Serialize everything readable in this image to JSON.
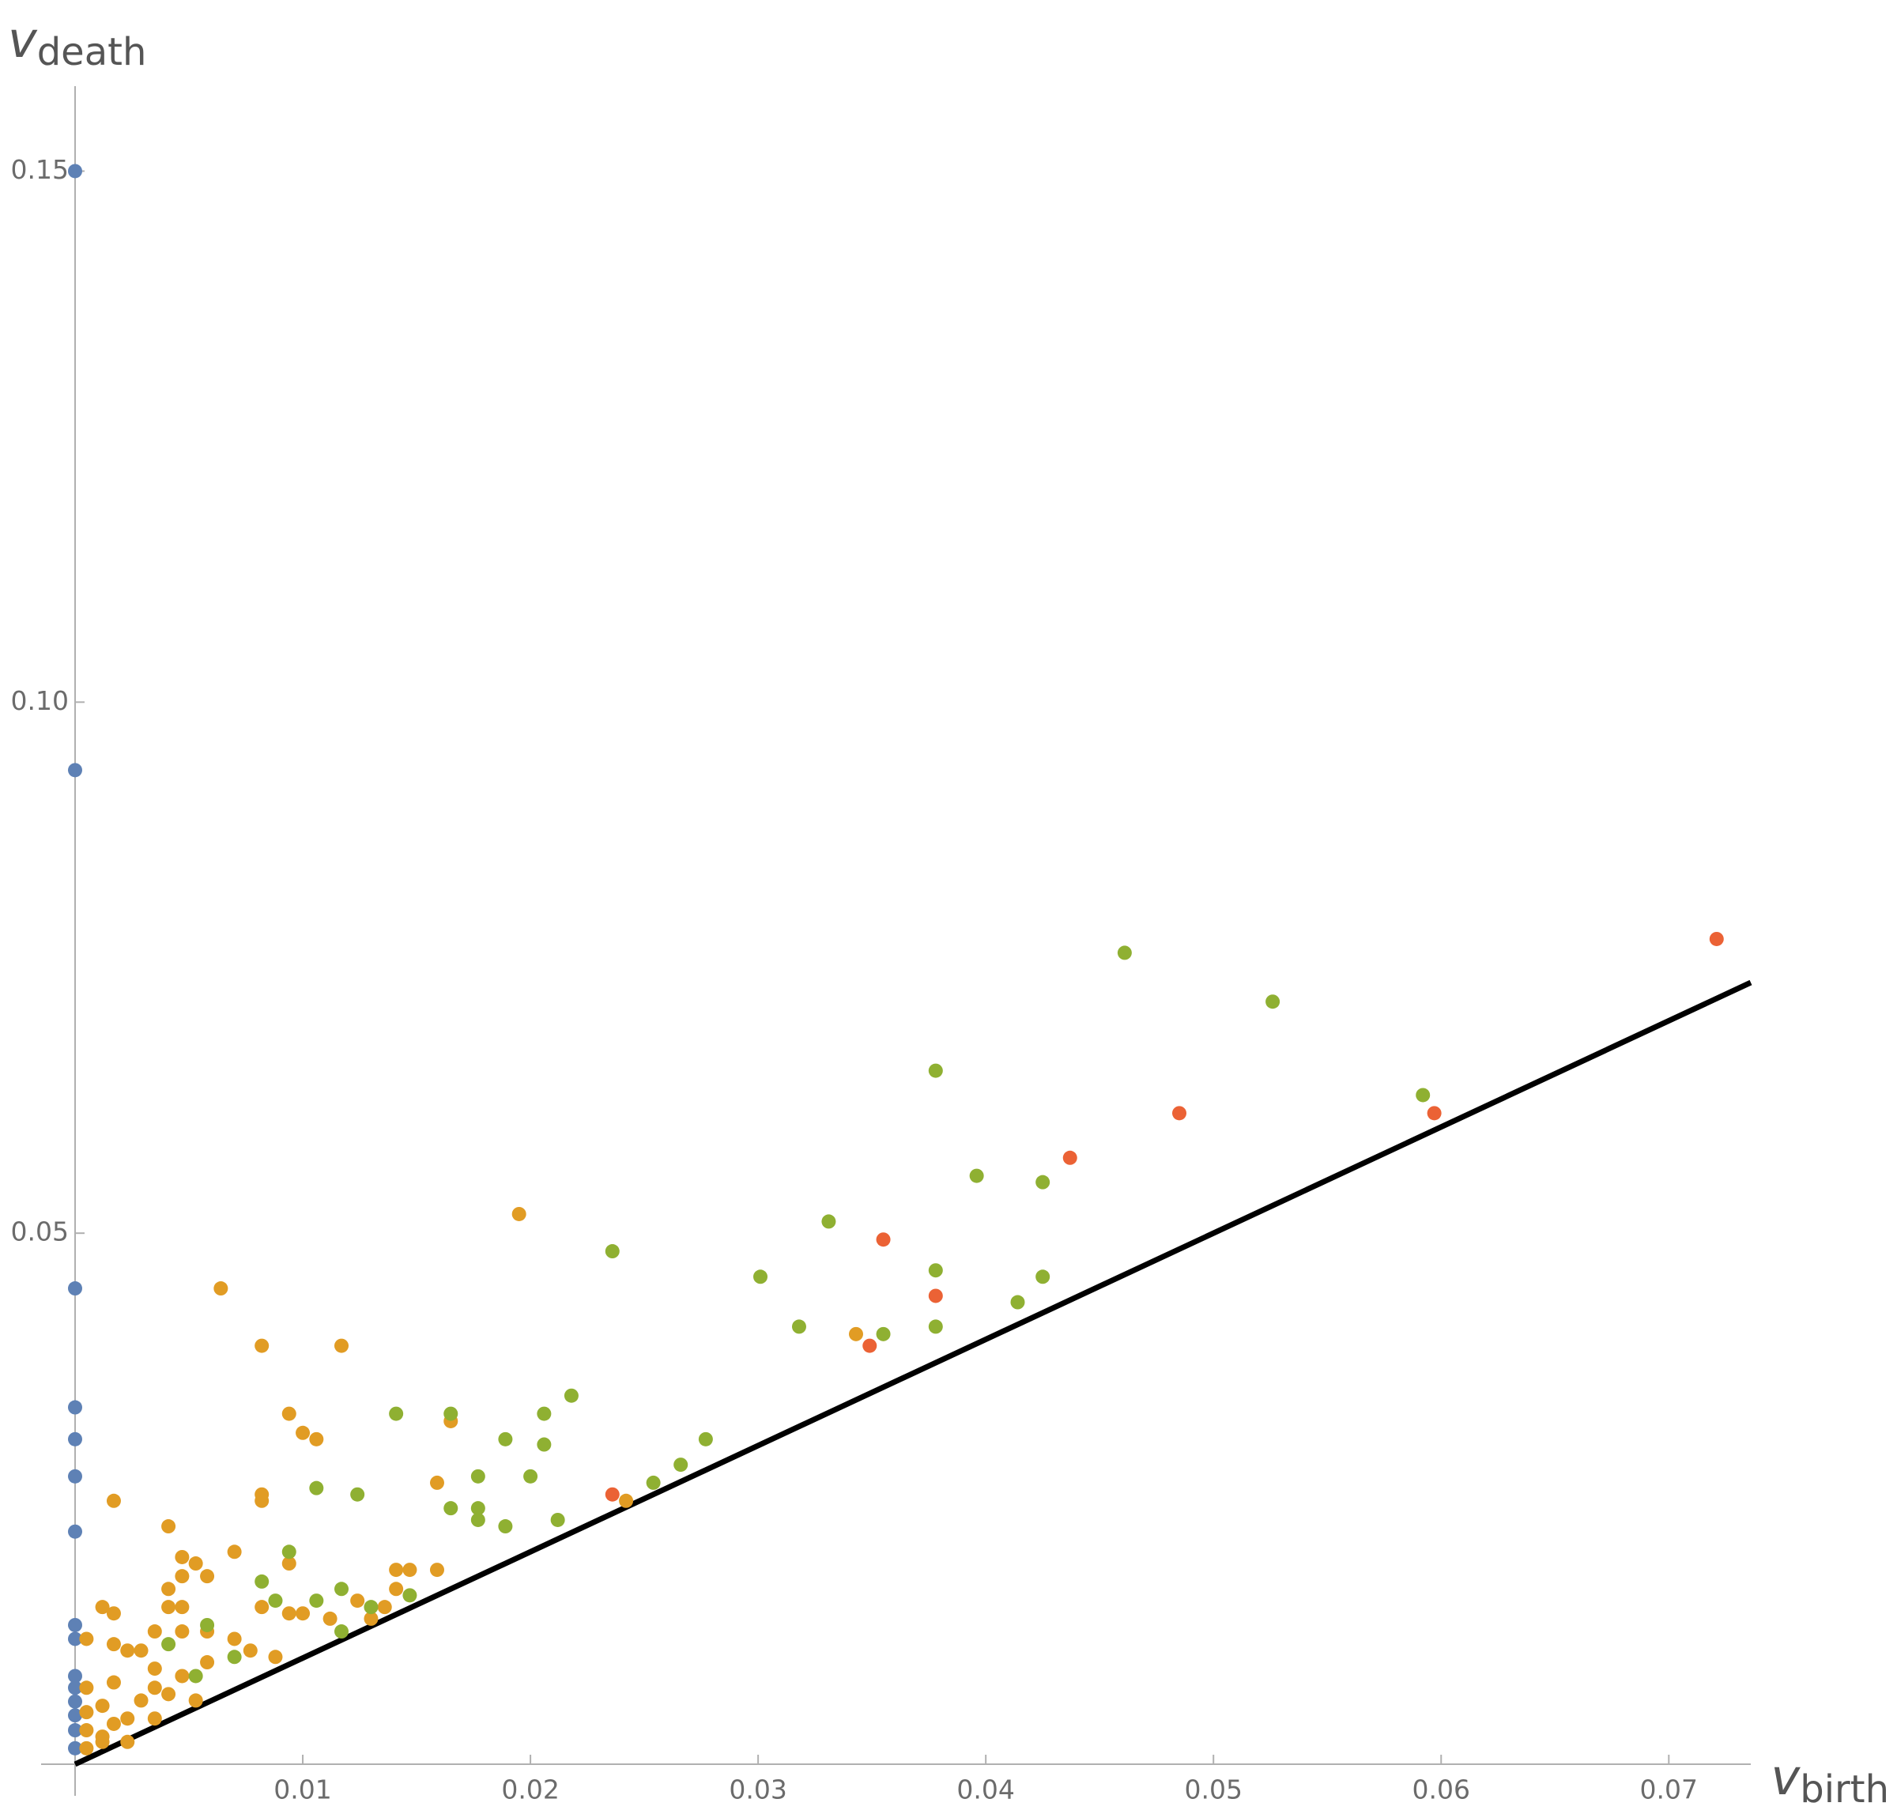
{
  "chart_data": {
    "type": "scatter",
    "x_label": "v",
    "x_label_sub": "birth",
    "y_label": "v",
    "y_label_sub": "death",
    "xlim": [
      0,
      0.0736
    ],
    "ylim": [
      0,
      0.158
    ],
    "xticks": [
      0.01,
      0.02,
      0.03,
      0.04,
      0.05,
      0.06,
      0.07
    ],
    "yticks": [
      0.05,
      {
        "value": 0.1,
        "label": "0.10"
      },
      0.15
    ],
    "diagonal": {
      "color": "#000000",
      "x": [
        0,
        0.0736
      ],
      "y": [
        0,
        0.0736
      ]
    },
    "series": [
      {
        "color": "#5e81b5",
        "x": [
          0,
          0,
          0,
          0,
          0,
          0,
          0,
          0,
          0,
          0,
          0,
          0,
          0,
          0,
          0
        ],
        "y": [
          0.15,
          0.0936,
          0.0448,
          0.0336,
          0.0306,
          0.0271,
          0.0219,
          0.0131,
          0.0118,
          0.0083,
          0.0072,
          0.0059,
          0.0046,
          0.0032,
          0.0015
        ]
      },
      {
        "color": "#e19c24",
        "x": [
          0.0195,
          0.0064,
          0.0082,
          0.0117,
          0.0094,
          0.01,
          0.0106,
          0.0165,
          0.0159,
          0.0017,
          0.0082,
          0.0082,
          0.0041,
          0.007,
          0.0047,
          0.0053,
          0.0094,
          0.0047,
          0.0058,
          0.0141,
          0.0147,
          0.0159,
          0.0041,
          0.0141,
          0.0082,
          0.0041,
          0.0047,
          0.01,
          0.0094,
          0.0124,
          0.0136,
          0.0012,
          0.0017,
          0.0112,
          0.013,
          0.0058,
          0.007,
          0.0035,
          0.0047,
          0.0005,
          0.0017,
          0.0023,
          0.0029,
          0.0077,
          0.0088,
          0.0058,
          0.0035,
          0.0047,
          0.0017,
          0.0005,
          0.0035,
          0.0041,
          0.0053,
          0.0029,
          0.0012,
          0.0005,
          0.0023,
          0.0017,
          0.0035,
          0.0005,
          0.0012,
          0.0023,
          0.0005,
          0.0012,
          0.0242,
          0.0343
        ],
        "y": [
          0.0518,
          0.0448,
          0.0394,
          0.0394,
          0.033,
          0.0312,
          0.0306,
          0.0323,
          0.0265,
          0.0248,
          0.0254,
          0.0248,
          0.0224,
          0.02,
          0.0195,
          0.0189,
          0.0189,
          0.0177,
          0.0177,
          0.0183,
          0.0183,
          0.0183,
          0.0165,
          0.0165,
          0.0148,
          0.0148,
          0.0148,
          0.0142,
          0.0142,
          0.0154,
          0.0148,
          0.0148,
          0.0142,
          0.0137,
          0.0137,
          0.0125,
          0.0118,
          0.0125,
          0.0125,
          0.0118,
          0.0113,
          0.0107,
          0.0107,
          0.0107,
          0.0101,
          0.0096,
          0.009,
          0.0083,
          0.0077,
          0.0072,
          0.0072,
          0.0066,
          0.006,
          0.006,
          0.0055,
          0.0049,
          0.0043,
          0.0038,
          0.0043,
          0.0032,
          0.0026,
          0.0021,
          0.0015,
          0.0021,
          0.0248,
          0.0405
        ]
      },
      {
        "color": "#8fb032",
        "x": [
          0.0461,
          0.0526,
          0.0378,
          0.0592,
          0.0396,
          0.0425,
          0.0331,
          0.0236,
          0.0301,
          0.0378,
          0.0425,
          0.0414,
          0.0318,
          0.0355,
          0.0378,
          0.0218,
          0.0206,
          0.0141,
          0.0165,
          0.0189,
          0.0206,
          0.0277,
          0.0266,
          0.0254,
          0.02,
          0.0177,
          0.0106,
          0.0124,
          0.0165,
          0.0177,
          0.0177,
          0.0189,
          0.0212,
          0.0094,
          0.0082,
          0.0117,
          0.0147,
          0.0088,
          0.0106,
          0.013,
          0.0058,
          0.0041,
          0.0053,
          0.007,
          0.0117
        ],
        "y": [
          0.0764,
          0.0718,
          0.0653,
          0.063,
          0.0554,
          0.0548,
          0.0511,
          0.0483,
          0.0459,
          0.0465,
          0.0459,
          0.0435,
          0.0412,
          0.0405,
          0.0412,
          0.0347,
          0.033,
          0.033,
          0.033,
          0.0306,
          0.0301,
          0.0306,
          0.0282,
          0.0265,
          0.0271,
          0.0271,
          0.026,
          0.0254,
          0.0241,
          0.0241,
          0.023,
          0.0224,
          0.023,
          0.02,
          0.0172,
          0.0165,
          0.0159,
          0.0154,
          0.0154,
          0.0148,
          0.0131,
          0.0113,
          0.0083,
          0.0101,
          0.0125
        ]
      },
      {
        "color": "#eb6235",
        "x": [
          0.0721,
          0.0485,
          0.0597,
          0.0437,
          0.0355,
          0.0378,
          0.0349,
          0.0236
        ],
        "y": [
          0.0777,
          0.0613,
          0.0613,
          0.0571,
          0.0494,
          0.0441,
          0.0394,
          0.0254
        ]
      }
    ]
  }
}
